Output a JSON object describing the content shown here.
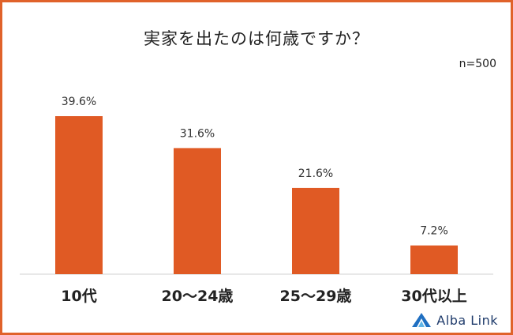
{
  "chart_data": {
    "type": "bar",
    "title": "実家を出たのは何歳ですか？",
    "note": "n=500",
    "categories": [
      "10代",
      "20～24歳",
      "25～29歳",
      "30代以上"
    ],
    "values": [
      39.6,
      31.6,
      21.6,
      7.2
    ],
    "value_labels": [
      "39.6%",
      "31.6%",
      "21.6%",
      "7.2%"
    ],
    "ylim": [
      0,
      40
    ],
    "grid": false,
    "bar_color": "#e05a24",
    "xlabel": "",
    "ylabel": ""
  },
  "brand": {
    "name": "Alba Link",
    "icon": "alba-link-logo-icon",
    "color": "#1f3b6b"
  },
  "frame_color": "#e0622a"
}
